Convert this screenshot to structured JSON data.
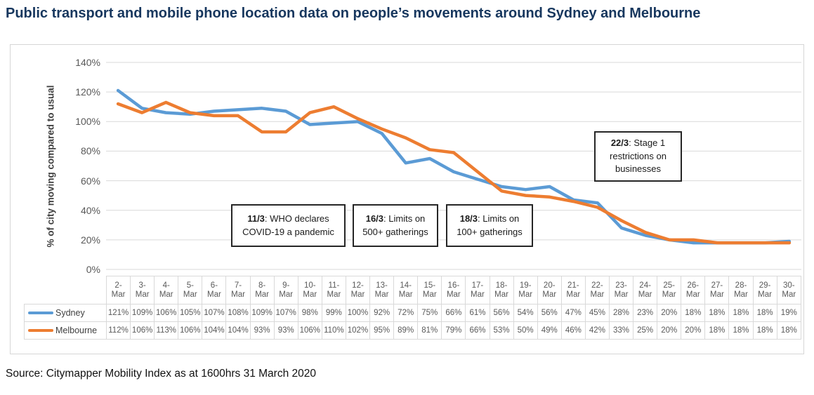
{
  "page": {
    "title": "Public transport and mobile phone location data on people’s movements around Sydney and Melbourne",
    "source": "Source: Citymapper Mobility Index as at 1600hrs 31 March 2020"
  },
  "chart_data": {
    "type": "line",
    "title": "Public transport and mobile phone location data on people’s movements around Sydney and Melbourne",
    "xlabel": "",
    "ylabel": "% of city moving compared to usual",
    "ylim": [
      0,
      140
    ],
    "ytick_step": 20,
    "ytick_suffix": "%",
    "value_suffix": "%",
    "grid": true,
    "gridline_color": "#d9d9d9",
    "legend_position": "table-left",
    "categories": [
      "2-Mar",
      "3-Mar",
      "4-Mar",
      "5-Mar",
      "6-Mar",
      "7-Mar",
      "8-Mar",
      "9-Mar",
      "10-Mar",
      "11-Mar",
      "12-Mar",
      "13-Mar",
      "14-Mar",
      "15-Mar",
      "16-Mar",
      "17-Mar",
      "18-Mar",
      "19-Mar",
      "20-Mar",
      "21-Mar",
      "22-Mar",
      "23-Mar",
      "24-Mar",
      "25-Mar",
      "26-Mar",
      "27-Mar",
      "28-Mar",
      "29-Mar",
      "30-Mar"
    ],
    "series": [
      {
        "name": "Sydney",
        "color": "#5B9BD5",
        "values": [
          121,
          109,
          106,
          105,
          107,
          108,
          109,
          107,
          98,
          99,
          100,
          92,
          72,
          75,
          66,
          61,
          56,
          54,
          56,
          47,
          45,
          28,
          23,
          20,
          18,
          18,
          18,
          18,
          19
        ]
      },
      {
        "name": "Melbourne",
        "color": "#ED7D31",
        "values": [
          112,
          106,
          113,
          106,
          104,
          104,
          93,
          93,
          106,
          110,
          102,
          95,
          89,
          81,
          79,
          66,
          53,
          50,
          49,
          46,
          42,
          33,
          25,
          20,
          20,
          18,
          18,
          18,
          18
        ]
      }
    ],
    "annotations": [
      {
        "date": "11/3",
        "text": ": WHO declares COVID-19 a pandemic"
      },
      {
        "date": "16/3",
        "text": ": Limits on 500+ gatherings"
      },
      {
        "date": "18/3",
        "text": ": Limits on 100+ gatherings"
      },
      {
        "date": "22/3",
        "text": ": Stage 1 restrictions on businesses"
      }
    ]
  }
}
